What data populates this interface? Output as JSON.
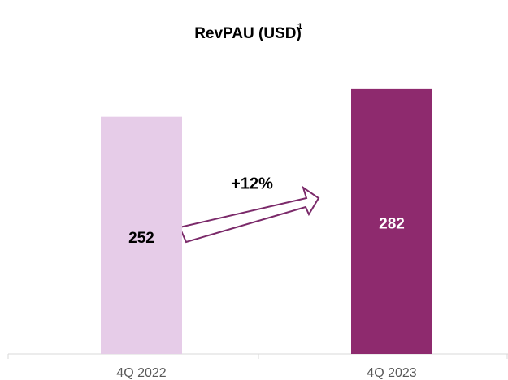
{
  "chart_data": {
    "type": "bar",
    "title": "RevPAU (USD)",
    "title_superscript": "1",
    "categories": [
      "4Q 2022",
      "4Q 2023"
    ],
    "values": [
      252,
      282
    ],
    "colors": [
      "#e6cce8",
      "#8e2a6e"
    ],
    "label_colors": [
      "#000000",
      "#ffffff"
    ],
    "annotation": "+12%",
    "ylim": [
      0,
      300
    ]
  }
}
